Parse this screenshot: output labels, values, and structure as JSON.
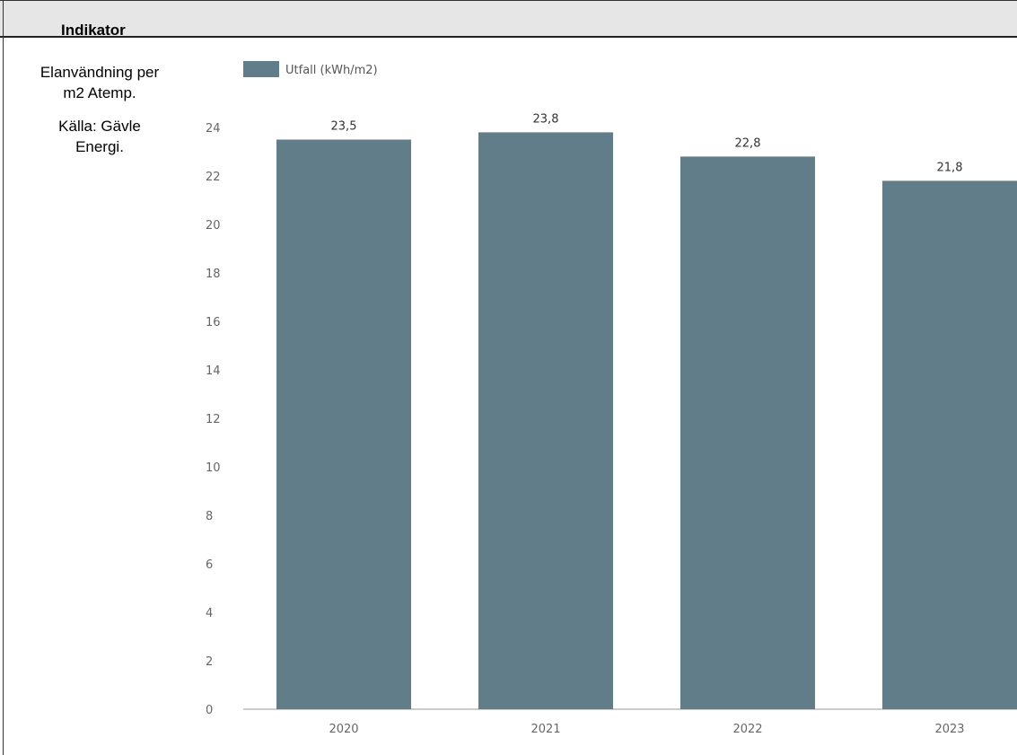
{
  "table": {
    "header": "Indikator",
    "indicator_lines": [
      "Elanvändning per",
      "m2 Atemp."
    ],
    "source_lines": [
      "Källa: Gävle",
      "Energi."
    ]
  },
  "chart_data": {
    "type": "bar",
    "categories": [
      "2020",
      "2021",
      "2022",
      "2023"
    ],
    "series": [
      {
        "name": "Utfall (kWh/m2)",
        "values": [
          23.5,
          23.8,
          22.8,
          21.8
        ],
        "color": "#617d8a"
      }
    ],
    "data_labels": [
      "23,5",
      "23,8",
      "22,8",
      "21,8"
    ],
    "ylim": [
      0,
      24
    ],
    "yticks": [
      0,
      2,
      4,
      6,
      8,
      10,
      12,
      14,
      16,
      18,
      20,
      22,
      24
    ],
    "legend_position": "top-left",
    "grid": false,
    "title": "",
    "xlabel": "",
    "ylabel": ""
  }
}
